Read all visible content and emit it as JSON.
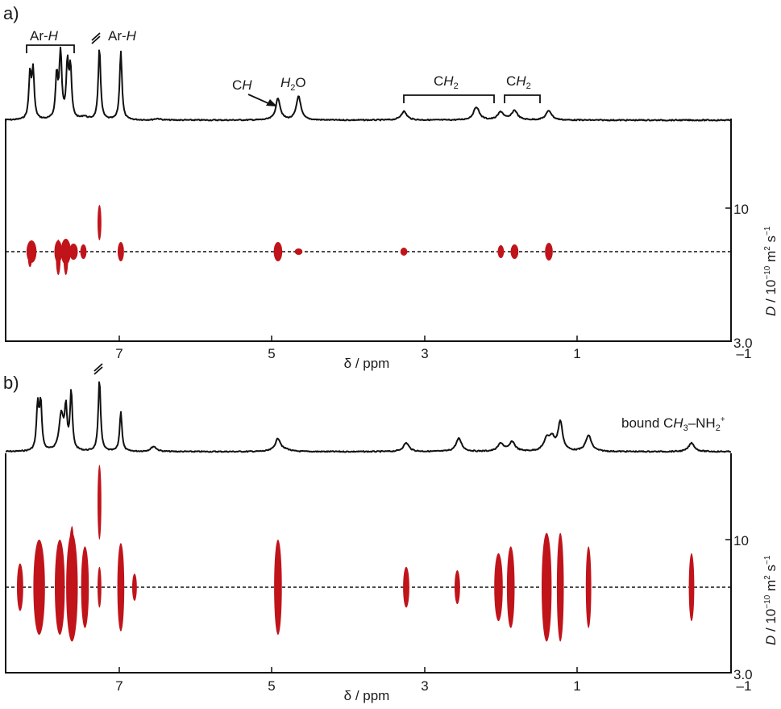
{
  "colors": {
    "spectrum": "#111111",
    "contour": "#c0141a",
    "axis": "#111111"
  },
  "chart_data": [
    {
      "type": "scatter",
      "panel_label": "a)",
      "xlabel": "δ / ppm",
      "xlim": [
        8.4,
        -1
      ],
      "xticks": [
        "7",
        "5",
        "3",
        "1",
        "–1"
      ],
      "ylabel_parts": [
        "D",
        " / 10",
        "−10",
        " m",
        "2",
        " s",
        "−1"
      ],
      "ylim": [
        10,
        3.0
      ],
      "yticks": [
        "10",
        "3.0"
      ],
      "reference_line_D": 7.3,
      "annotations": [
        {
          "text": "Ar-",
          "italic": "H"
        },
        {
          "text": "Ar-",
          "italic": "H"
        },
        {
          "text": "C",
          "italic": "H",
          "arrow_to_ppm": 4.92
        },
        {
          "italic": "H",
          "sub": "2",
          "text": "O"
        },
        {
          "text": "C",
          "italic": "H",
          "sub": "2"
        },
        {
          "text": "C",
          "italic": "H",
          "sub": "2"
        }
      ],
      "spectrum_peaks": [
        {
          "ppm": 8.17,
          "height": 0.62
        },
        {
          "ppm": 8.13,
          "height": 0.66
        },
        {
          "ppm": 7.82,
          "height": 0.6
        },
        {
          "ppm": 7.77,
          "height": 0.95
        },
        {
          "ppm": 7.68,
          "height": 0.75
        },
        {
          "ppm": 7.64,
          "height": 0.68
        },
        {
          "ppm": 7.46,
          "height": 0.04
        },
        {
          "ppm": 7.26,
          "height": 1.0
        },
        {
          "ppm": 6.98,
          "height": 0.95
        },
        {
          "ppm": 6.5,
          "height": 0.02
        },
        {
          "ppm": 4.92,
          "height": 0.3
        },
        {
          "ppm": 4.65,
          "height": 0.33
        },
        {
          "ppm": 3.27,
          "height": 0.12
        },
        {
          "ppm": 2.32,
          "height": 0.18
        },
        {
          "ppm": 2.0,
          "height": 0.11
        },
        {
          "ppm": 1.82,
          "height": 0.13
        },
        {
          "ppm": 1.37,
          "height": 0.13
        }
      ],
      "cross_peaks": [
        {
          "ppm": 8.15,
          "D": 7.3,
          "w": 0.1,
          "h": 0.14
        },
        {
          "ppm": 7.8,
          "D": 7.3,
          "w": 0.07,
          "h": 0.14
        },
        {
          "ppm": 7.7,
          "D": 7.3,
          "w": 0.1,
          "h": 0.16
        },
        {
          "ppm": 7.6,
          "D": 7.3,
          "w": 0.08,
          "h": 0.1
        },
        {
          "ppm": 7.47,
          "D": 7.3,
          "w": 0.05,
          "h": 0.09
        },
        {
          "ppm": 6.98,
          "D": 7.3,
          "w": 0.05,
          "h": 0.12
        },
        {
          "ppm": 4.92,
          "D": 7.3,
          "w": 0.08,
          "h": 0.12
        },
        {
          "ppm": 4.65,
          "D": 7.3,
          "w": 0.07,
          "h": 0.04
        },
        {
          "ppm": 3.27,
          "D": 7.3,
          "w": 0.06,
          "h": 0.05
        },
        {
          "ppm": 2.0,
          "D": 7.3,
          "w": 0.05,
          "h": 0.08
        },
        {
          "ppm": 1.82,
          "D": 7.3,
          "w": 0.07,
          "h": 0.09
        },
        {
          "ppm": 1.37,
          "D": 7.3,
          "w": 0.07,
          "h": 0.11
        },
        {
          "ppm": 7.26,
          "D": 9.1,
          "w": 0.02,
          "h": 0.22
        },
        {
          "ppm": 8.17,
          "D": 6.85,
          "w": 0.02,
          "h": 0.1
        },
        {
          "ppm": 7.8,
          "D": 6.95,
          "w": 0.03,
          "h": 0.22
        },
        {
          "ppm": 7.7,
          "D": 6.95,
          "w": 0.03,
          "h": 0.22
        }
      ]
    },
    {
      "type": "scatter",
      "panel_label": "b)",
      "xlabel": "δ / ppm",
      "xlim": [
        8.4,
        -1
      ],
      "xticks": [
        "7",
        "5",
        "3",
        "1",
        "–1"
      ],
      "ylabel_parts": [
        "D",
        " / 10",
        "−10",
        " m",
        "2",
        " s",
        "−1"
      ],
      "ylim": [
        10,
        3.0
      ],
      "yticks": [
        "10",
        "3.0"
      ],
      "reference_line_D": 9.3,
      "annotations": [
        {
          "text_before": "bound C",
          "italic": "H",
          "sub": "3",
          "text_after": "–NH",
          "sub2": "2",
          "sup": "+"
        }
      ],
      "spectrum_peaks": [
        {
          "ppm": 8.07,
          "height": 0.62
        },
        {
          "ppm": 8.03,
          "height": 0.66
        },
        {
          "ppm": 7.76,
          "height": 0.5
        },
        {
          "ppm": 7.7,
          "height": 0.55
        },
        {
          "ppm": 7.63,
          "height": 0.8
        },
        {
          "ppm": 7.26,
          "height": 1.0
        },
        {
          "ppm": 6.98,
          "height": 0.55
        },
        {
          "ppm": 6.55,
          "height": 0.07
        },
        {
          "ppm": 4.92,
          "height": 0.18
        },
        {
          "ppm": 4.8,
          "height": 0.02
        },
        {
          "ppm": 3.24,
          "height": 0.12
        },
        {
          "ppm": 2.55,
          "height": 0.18
        },
        {
          "ppm": 2.0,
          "height": 0.11
        },
        {
          "ppm": 1.85,
          "height": 0.13
        },
        {
          "ppm": 1.4,
          "height": 0.15
        },
        {
          "ppm": 1.33,
          "height": 0.17
        },
        {
          "ppm": 1.22,
          "height": 0.4
        },
        {
          "ppm": 0.85,
          "height": 0.22
        },
        {
          "ppm": -0.5,
          "height": 0.12
        }
      ],
      "cross_peaks": [
        {
          "ppm": 8.3,
          "D": 9.3,
          "w": 0.05,
          "h": 0.07
        },
        {
          "ppm": 8.05,
          "D": 9.3,
          "w": 0.12,
          "h": 0.14
        },
        {
          "ppm": 7.78,
          "D": 9.3,
          "w": 0.1,
          "h": 0.14
        },
        {
          "ppm": 7.62,
          "D": 9.3,
          "w": 0.12,
          "h": 0.16
        },
        {
          "ppm": 7.45,
          "D": 9.3,
          "w": 0.07,
          "h": 0.12
        },
        {
          "ppm": 7.26,
          "D": 9.3,
          "w": 0.02,
          "h": 0.06
        },
        {
          "ppm": 6.98,
          "D": 9.3,
          "w": 0.06,
          "h": 0.13
        },
        {
          "ppm": 6.8,
          "D": 9.3,
          "w": 0.03,
          "h": 0.04
        },
        {
          "ppm": 4.92,
          "D": 9.3,
          "w": 0.07,
          "h": 0.14
        },
        {
          "ppm": 3.24,
          "D": 9.3,
          "w": 0.05,
          "h": 0.06
        },
        {
          "ppm": 2.57,
          "D": 9.3,
          "w": 0.04,
          "h": 0.05
        },
        {
          "ppm": 2.03,
          "D": 9.3,
          "w": 0.08,
          "h": 0.1
        },
        {
          "ppm": 1.87,
          "D": 9.3,
          "w": 0.07,
          "h": 0.12
        },
        {
          "ppm": 1.4,
          "D": 9.3,
          "w": 0.1,
          "h": 0.16
        },
        {
          "ppm": 1.22,
          "D": 9.3,
          "w": 0.06,
          "h": 0.16
        },
        {
          "ppm": 0.85,
          "D": 9.3,
          "w": 0.04,
          "h": 0.12
        },
        {
          "ppm": -0.5,
          "D": 9.3,
          "w": 0.04,
          "h": 0.1
        },
        {
          "ppm": 7.62,
          "D": 9.85,
          "w": 0.02,
          "h": 0.07
        },
        {
          "ppm": 7.63,
          "D": 9.55,
          "w": 0.03,
          "h": 0.12
        },
        {
          "ppm": 7.26,
          "D": 10.55,
          "w": 0.02,
          "h": 0.11
        }
      ]
    }
  ]
}
